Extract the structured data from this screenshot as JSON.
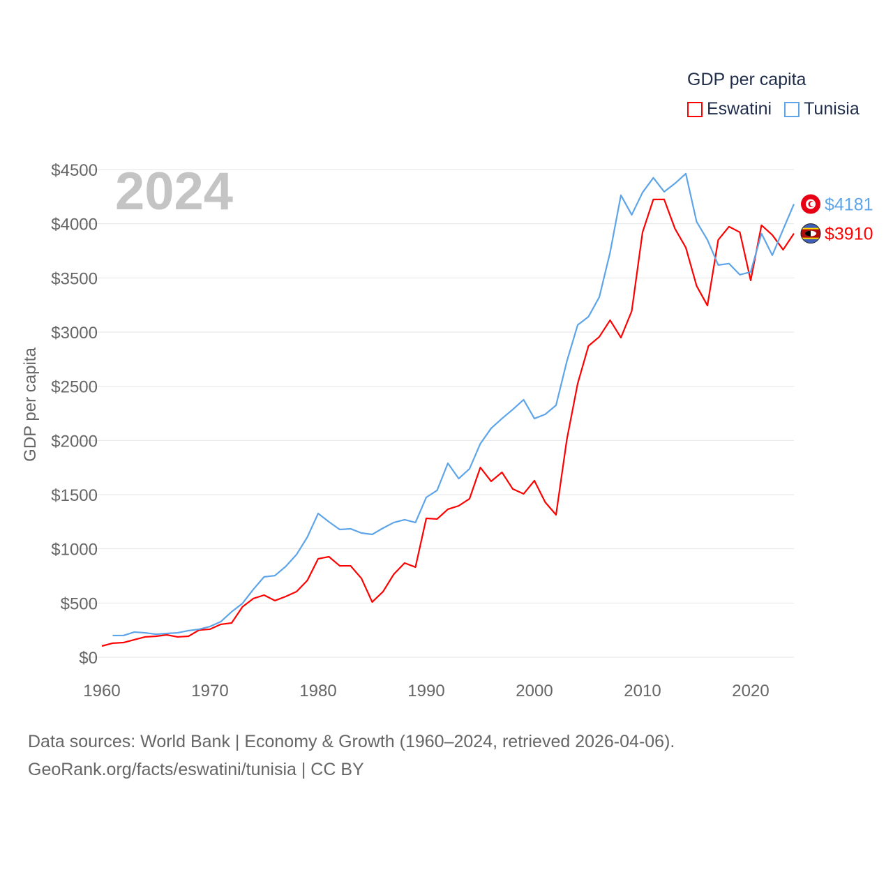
{
  "chart_data": {
    "type": "line",
    "title": "GDP per capita",
    "year_label": "2024",
    "ylabel": "GDP per capita",
    "xlabel": "",
    "xlim": [
      1960,
      2024
    ],
    "ylim": [
      0,
      4500
    ],
    "xticks": [
      1960,
      1970,
      1980,
      1990,
      2000,
      2010,
      2020
    ],
    "xtick_labels": [
      "1960",
      "1970",
      "1980",
      "1990",
      "2000",
      "2010",
      "2020"
    ],
    "yticks": [
      0,
      500,
      1000,
      1500,
      2000,
      2500,
      3000,
      3500,
      4000,
      4500
    ],
    "ytick_labels": [
      "$0",
      "$500",
      "$1000",
      "$1500",
      "$2000",
      "$2500",
      "$3000",
      "$3500",
      "$4000",
      "$4500"
    ],
    "grid": true,
    "legend_placement": "top-right",
    "series": [
      {
        "name": "Eswatini",
        "color": "#ff0000",
        "end_label": "$3910",
        "flag": "eswatini-flag",
        "x": [
          1960,
          1961,
          1962,
          1963,
          1964,
          1965,
          1966,
          1967,
          1968,
          1969,
          1970,
          1971,
          1972,
          1973,
          1974,
          1975,
          1976,
          1977,
          1978,
          1979,
          1980,
          1981,
          1982,
          1983,
          1984,
          1985,
          1986,
          1987,
          1988,
          1989,
          1990,
          1991,
          1992,
          1993,
          1994,
          1995,
          1996,
          1997,
          1998,
          1999,
          2000,
          2001,
          2002,
          2003,
          2004,
          2005,
          2006,
          2007,
          2008,
          2009,
          2010,
          2011,
          2012,
          2013,
          2014,
          2015,
          2016,
          2017,
          2018,
          2019,
          2020,
          2021,
          2022,
          2023,
          2024
        ],
        "values": [
          103,
          129,
          135,
          161,
          187,
          193,
          206,
          187,
          193,
          251,
          258,
          303,
          316,
          464,
          541,
          573,
          522,
          560,
          605,
          708,
          908,
          927,
          843,
          843,
          728,
          509,
          605,
          766,
          869,
          831,
          1281,
          1275,
          1365,
          1397,
          1462,
          1751,
          1623,
          1706,
          1552,
          1507,
          1629,
          1430,
          1314,
          2009,
          2524,
          2872,
          2956,
          3110,
          2949,
          3194,
          3921,
          4224,
          4224,
          3954,
          3780,
          3426,
          3245,
          3851,
          3973,
          3921,
          3477,
          3986,
          3896,
          3760,
          3910
        ]
      },
      {
        "name": "Tunisia",
        "color": "#5da5e8",
        "end_label": "$4181",
        "flag": "tunisia-flag",
        "x": [
          1961,
          1962,
          1963,
          1964,
          1965,
          1966,
          1967,
          1968,
          1969,
          1970,
          1971,
          1972,
          1973,
          1974,
          1975,
          1976,
          1977,
          1978,
          1979,
          1980,
          1981,
          1982,
          1983,
          1984,
          1985,
          1986,
          1987,
          1988,
          1989,
          1990,
          1991,
          1992,
          1993,
          1994,
          1995,
          1996,
          1997,
          1998,
          1999,
          2000,
          2001,
          2002,
          2003,
          2004,
          2005,
          2006,
          2007,
          2008,
          2009,
          2010,
          2011,
          2012,
          2013,
          2014,
          2015,
          2016,
          2017,
          2018,
          2019,
          2020,
          2021,
          2022,
          2023,
          2024
        ],
        "values": [
          200,
          200,
          232,
          225,
          212,
          219,
          225,
          245,
          258,
          283,
          328,
          419,
          496,
          625,
          741,
          753,
          837,
          947,
          1108,
          1326,
          1249,
          1178,
          1185,
          1146,
          1133,
          1191,
          1243,
          1269,
          1243,
          1475,
          1539,
          1790,
          1648,
          1739,
          1970,
          2112,
          2202,
          2286,
          2376,
          2202,
          2241,
          2325,
          2730,
          3065,
          3142,
          3323,
          3735,
          4263,
          4082,
          4288,
          4424,
          4295,
          4372,
          4462,
          4018,
          3851,
          3619,
          3632,
          3529,
          3555,
          3909,
          3709,
          3947,
          4181
        ]
      }
    ]
  },
  "source": {
    "line1": "Data sources: World Bank | Economy & Growth (1960–2024, retrieved 2026-04-06).",
    "line2": "GeoRank.org/facts/eswatini/tunisia | CC BY"
  }
}
